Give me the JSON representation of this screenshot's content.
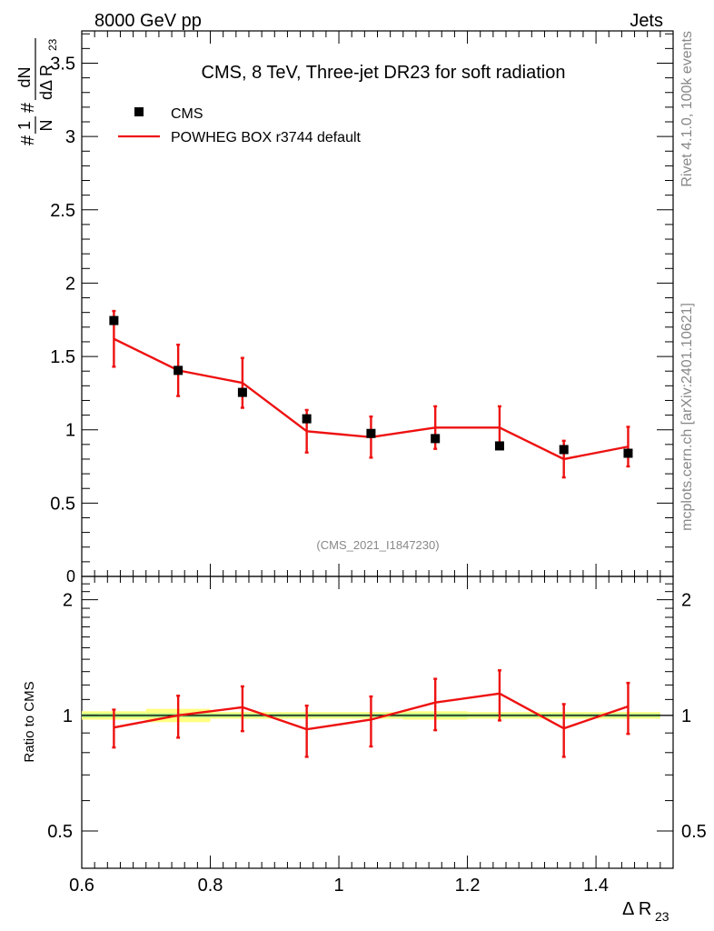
{
  "header": {
    "left": "8000 GeV pp",
    "right": "Jets"
  },
  "side": {
    "upper": "Rivet 4.1.0,  100k events",
    "lower": "mcplots.cern.ch [arXiv:2401.10621]"
  },
  "colors": {
    "mc": "#ee1111",
    "band_yellow": "#ffff80",
    "band_green": "#aaee88",
    "data": "#000000"
  },
  "chart_data": {
    "type": "scatter",
    "title": "CMS, 8 TeV, Three-jet DR23 for soft radiation",
    "watermark": "(CMS_2021_I1847230)",
    "xlabel": "Δ R",
    "xlabel_sub": "23",
    "ylabel": {
      "frac1_num": "1",
      "frac1_den": "N",
      "frac2_num": "dN",
      "frac2_den": "dΔ R",
      "den_sub": "23",
      "hash": "#"
    },
    "xlim": [
      0.6,
      1.52
    ],
    "ylim": [
      0,
      3.72
    ],
    "xticks": [
      "0.6",
      "0.8",
      "1",
      "1.2",
      "1.4"
    ],
    "xtick_values": [
      0.6,
      0.8,
      1.0,
      1.2,
      1.4
    ],
    "yticks": [
      "0.5",
      "1",
      "1.5",
      "2",
      "2.5",
      "3",
      "3.5"
    ],
    "ytick_values": [
      0.5,
      1.0,
      1.5,
      2.0,
      2.5,
      3.0,
      3.5
    ],
    "ytick_zero": "0",
    "legend": {
      "data": "CMS",
      "mc": "POWHEG BOX r3744 default"
    },
    "bins": [
      [
        0.6,
        0.7
      ],
      [
        0.7,
        0.8
      ],
      [
        0.8,
        0.9
      ],
      [
        0.9,
        1.0
      ],
      [
        1.0,
        1.1
      ],
      [
        1.1,
        1.2
      ],
      [
        1.2,
        1.3
      ],
      [
        1.3,
        1.4
      ],
      [
        1.4,
        1.5
      ]
    ],
    "data": {
      "name": "CMS",
      "x": [
        0.65,
        0.75,
        0.85,
        0.95,
        1.05,
        1.15,
        1.25,
        1.35,
        1.45
      ],
      "y": [
        1.745,
        1.405,
        1.255,
        1.075,
        0.975,
        0.94,
        0.89,
        0.865,
        0.84
      ],
      "err": [
        0.025,
        0.015,
        0.015,
        0.01,
        0.01,
        0.015,
        0.01,
        0.01,
        0.01
      ]
    },
    "mc": {
      "name": "POWHEG BOX r3744 default",
      "x": [
        0.65,
        0.75,
        0.85,
        0.95,
        1.05,
        1.15,
        1.25,
        1.35,
        1.45
      ],
      "y": [
        1.62,
        1.405,
        1.32,
        0.99,
        0.95,
        1.015,
        1.015,
        0.8,
        0.885
      ],
      "err_up": [
        0.19,
        0.175,
        0.17,
        0.145,
        0.14,
        0.145,
        0.145,
        0.125,
        0.135
      ],
      "err_down": [
        0.19,
        0.175,
        0.17,
        0.145,
        0.14,
        0.145,
        0.145,
        0.125,
        0.135
      ]
    },
    "ratio": {
      "ylabel": "Ratio to CMS",
      "ylim": [
        0.4,
        2.3
      ],
      "yticks": [
        "0.5",
        "1",
        "2"
      ],
      "ytick_values": [
        0.5,
        1.0,
        2.0
      ],
      "mc": [
        0.93,
        1.0,
        1.05,
        0.92,
        0.975,
        1.08,
        1.14,
        0.925,
        1.055
      ],
      "mc_err_up": [
        0.105,
        0.125,
        0.14,
        0.14,
        0.145,
        0.165,
        0.17,
        0.145,
        0.16
      ],
      "mc_err_down": [
        0.105,
        0.125,
        0.14,
        0.14,
        0.145,
        0.165,
        0.17,
        0.145,
        0.16
      ],
      "band_total": [
        0.025,
        0.04,
        0.02,
        0.02,
        0.02,
        0.025,
        0.02,
        0.02,
        0.02
      ],
      "band_stat": [
        0.012,
        0.012,
        0.01,
        0.01,
        0.01,
        0.012,
        0.01,
        0.01,
        0.01
      ]
    }
  }
}
